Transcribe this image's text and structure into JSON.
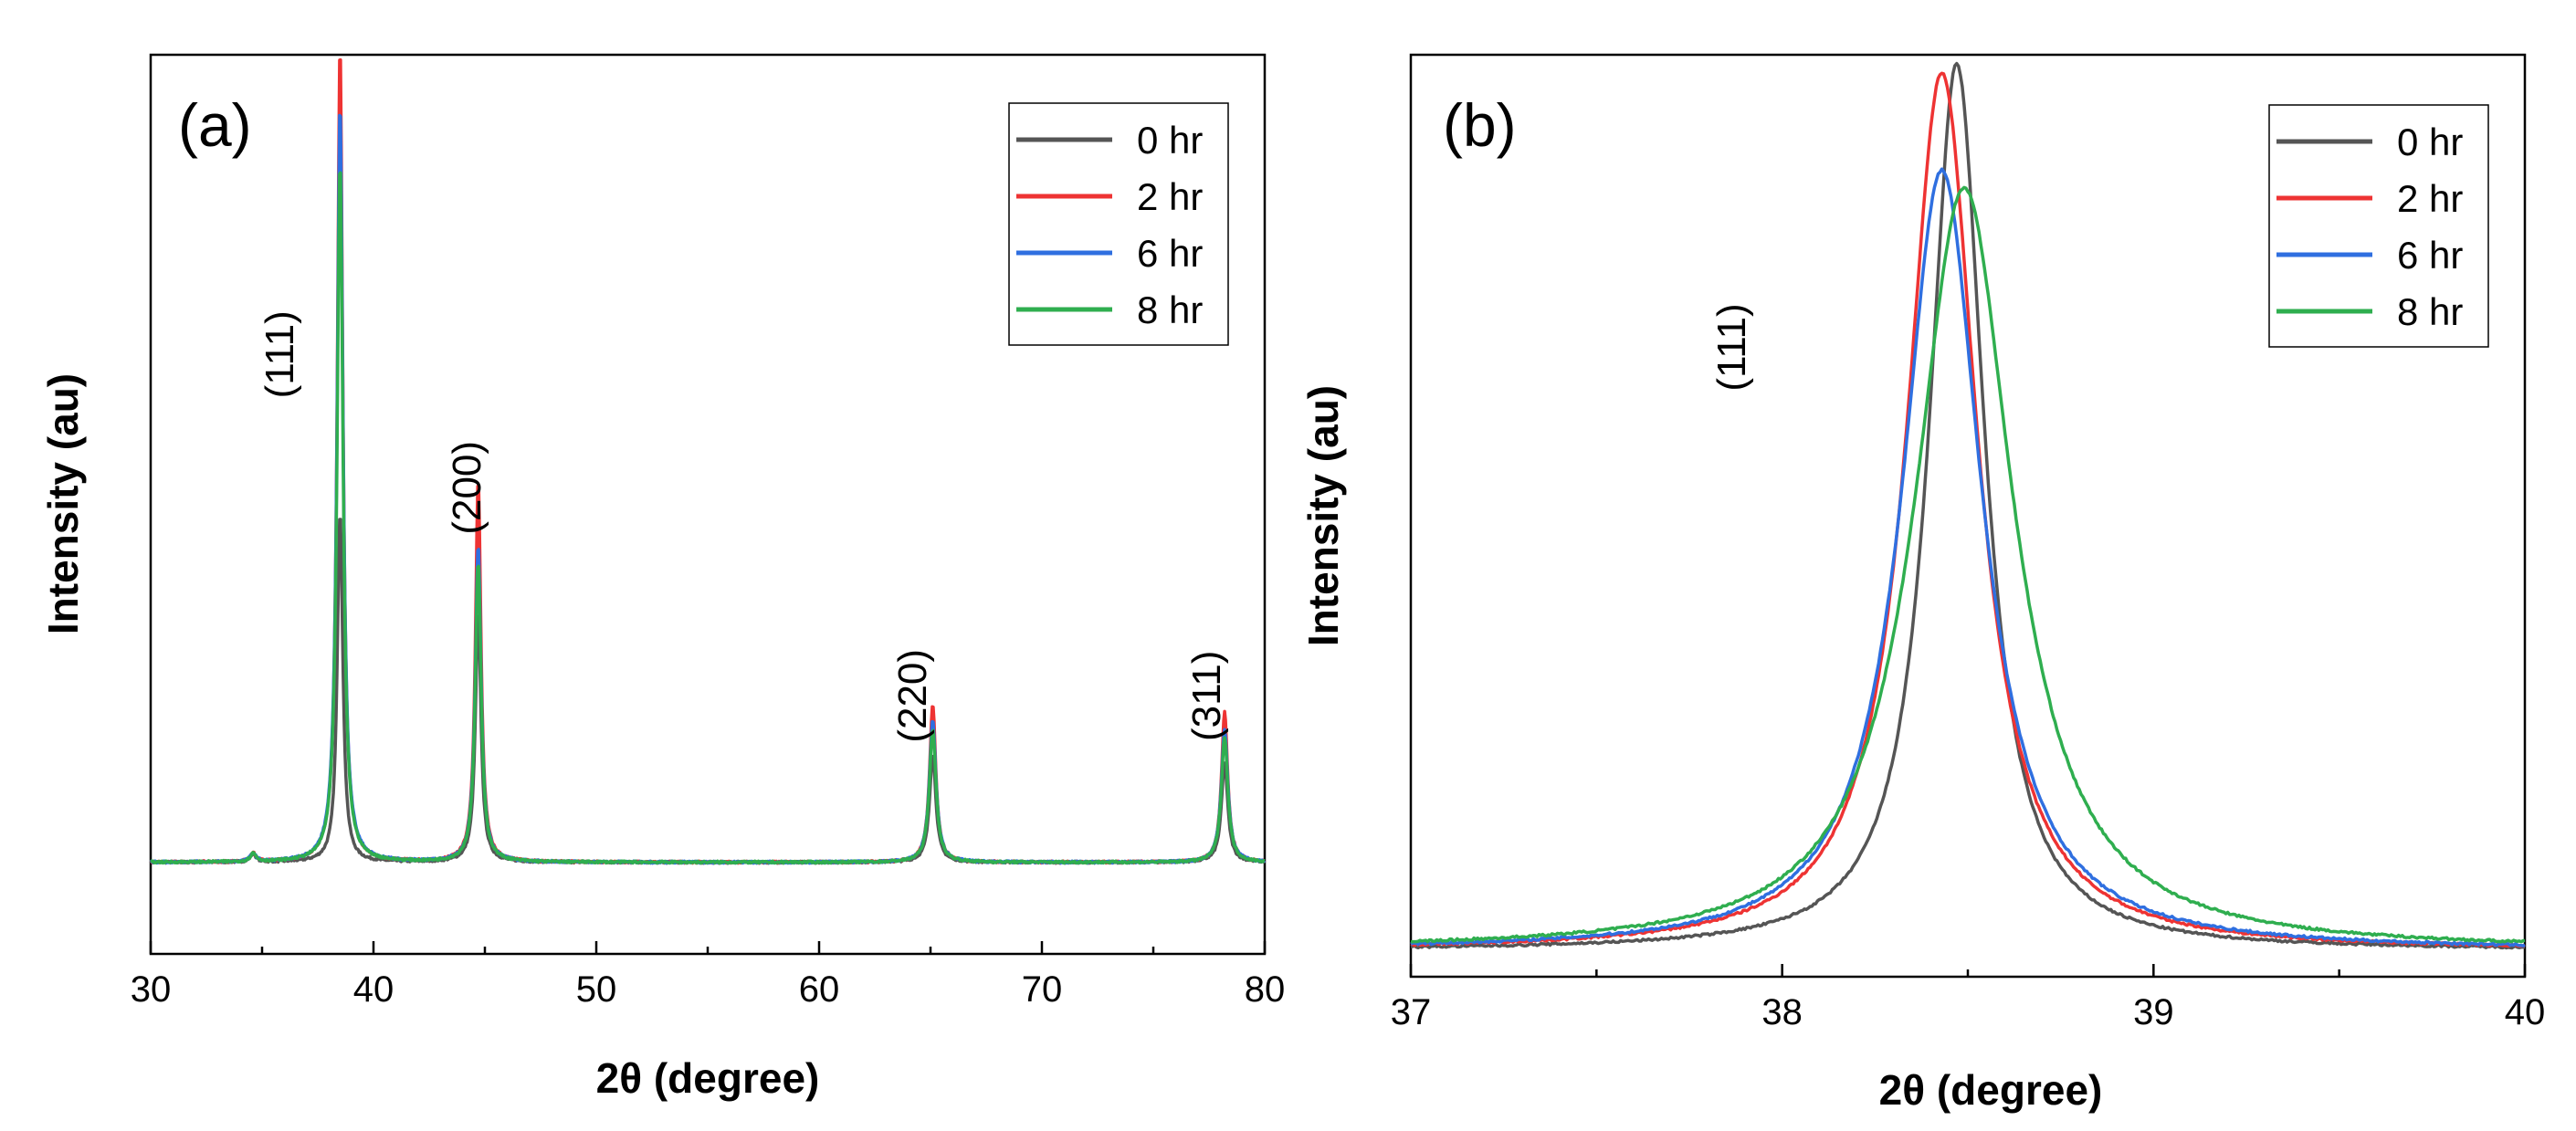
{
  "chart_data": [
    {
      "panel": "(a)",
      "type": "line",
      "xlabel": "2θ (degree)",
      "ylabel": "Intensity (au)",
      "xlim": [
        30,
        80
      ],
      "ylim": [
        -8,
        100
      ],
      "xticks": [
        30,
        40,
        50,
        60,
        70,
        80
      ],
      "baseline": 3,
      "legend_position": "top-right",
      "peak_labels": [
        {
          "text": "(111)",
          "x": 36.4,
          "y": 64
        },
        {
          "text": "(200)",
          "x": 44.8,
          "y": 48
        },
        {
          "text": "(220)",
          "x": 64.8,
          "y": 23
        },
        {
          "text": "(311)",
          "x": 78.0,
          "y": 23
        }
      ],
      "series": [
        {
          "name": "0 hr",
          "color": "#555555",
          "peaks": [
            {
              "x": 34.6,
              "h": 1,
              "w": 0.15
            },
            {
              "x": 38.5,
              "h": 42,
              "w": 0.15
            },
            {
              "x": 44.7,
              "h": 30,
              "w": 0.15
            },
            {
              "x": 65.1,
              "h": 13,
              "w": 0.17
            },
            {
              "x": 78.2,
              "h": 12,
              "w": 0.17
            }
          ]
        },
        {
          "name": "2 hr",
          "color": "#ee3333",
          "peaks": [
            {
              "x": 34.6,
              "h": 1,
              "w": 0.15
            },
            {
              "x": 38.5,
              "h": 98,
              "w": 0.15
            },
            {
              "x": 44.7,
              "h": 46,
              "w": 0.15
            },
            {
              "x": 65.1,
              "h": 19,
              "w": 0.17
            },
            {
              "x": 78.2,
              "h": 18,
              "w": 0.17
            }
          ]
        },
        {
          "name": "6 hr",
          "color": "#2f6fe0",
          "peaks": [
            {
              "x": 34.6,
              "h": 1,
              "w": 0.15
            },
            {
              "x": 38.5,
              "h": 91,
              "w": 0.16
            },
            {
              "x": 44.7,
              "h": 38,
              "w": 0.16
            },
            {
              "x": 65.1,
              "h": 17,
              "w": 0.18
            },
            {
              "x": 78.2,
              "h": 16,
              "w": 0.18
            }
          ]
        },
        {
          "name": "8 hr",
          "color": "#2fae4f",
          "peaks": [
            {
              "x": 34.6,
              "h": 1,
              "w": 0.15
            },
            {
              "x": 38.5,
              "h": 84,
              "w": 0.16
            },
            {
              "x": 44.7,
              "h": 36,
              "w": 0.16
            },
            {
              "x": 65.1,
              "h": 16,
              "w": 0.18
            },
            {
              "x": 78.2,
              "h": 15,
              "w": 0.18
            }
          ]
        }
      ]
    },
    {
      "panel": "(b)",
      "type": "line",
      "xlabel": "2θ (degree)",
      "ylabel": "Intensity (au)",
      "xlim": [
        37,
        40
      ],
      "ylim": [
        -3,
        101
      ],
      "xticks": [
        37,
        38,
        39,
        40
      ],
      "baseline": 0,
      "legend_position": "top-right",
      "peak_labels": [
        {
          "text": "(111)",
          "x": 37.9,
          "y": 68
        }
      ],
      "series": [
        {
          "name": "0 hr",
          "color": "#555555",
          "peaks": [
            {
              "x": 38.47,
              "h": 100,
              "w": 0.09
            }
          ]
        },
        {
          "name": "2 hr",
          "color": "#ee3333",
          "peaks": [
            {
              "x": 38.43,
              "h": 99,
              "w": 0.115
            }
          ]
        },
        {
          "name": "6 hr",
          "color": "#2f6fe0",
          "peaks": [
            {
              "x": 38.43,
              "h": 88,
              "w": 0.13
            }
          ]
        },
        {
          "name": "8 hr",
          "color": "#2fae4f",
          "peaks": [
            {
              "x": 38.49,
              "h": 86,
              "w": 0.16
            }
          ]
        }
      ]
    }
  ]
}
